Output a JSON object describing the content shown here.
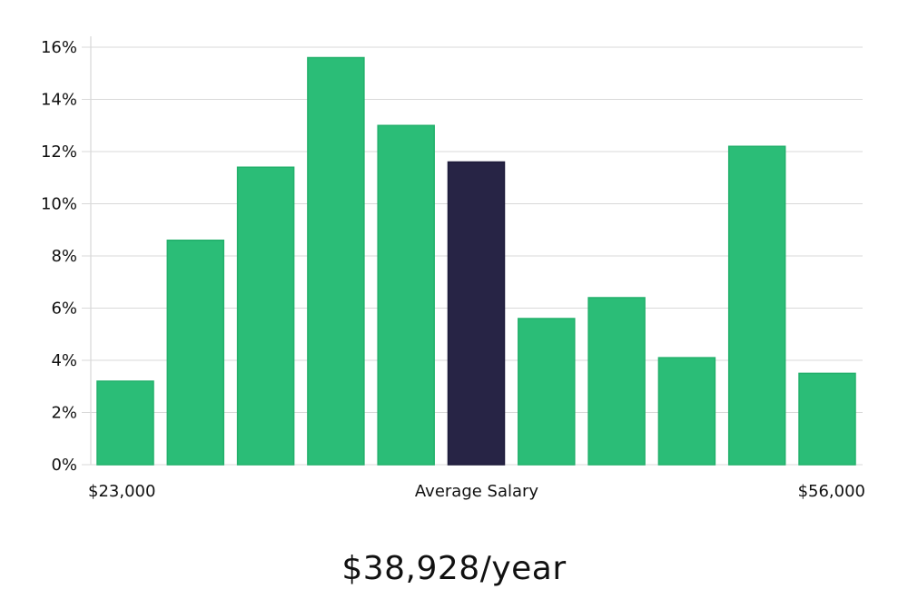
{
  "chart_data": {
    "type": "bar",
    "title": "",
    "xlabel": "",
    "ylabel": "",
    "ylim": [
      0,
      16
    ],
    "y_ticks": [
      0,
      2,
      4,
      6,
      8,
      10,
      12,
      14,
      16
    ],
    "y_tick_suffix": "%",
    "grid": true,
    "values": [
      3.2,
      8.6,
      11.4,
      15.6,
      13.0,
      11.6,
      5.6,
      6.4,
      4.1,
      12.2,
      3.5
    ],
    "highlight_index": 5,
    "x_labels": {
      "left": "$23,000",
      "center": "Average Salary",
      "right": "$56,000"
    },
    "colors": {
      "bar": "#2bbd77",
      "bar_stroke": "#22b06b",
      "highlight": "#272445",
      "grid": "#d9d9d9",
      "axis": "#cfcfcf"
    }
  },
  "summary": {
    "salary_text": "$38,928/year"
  }
}
